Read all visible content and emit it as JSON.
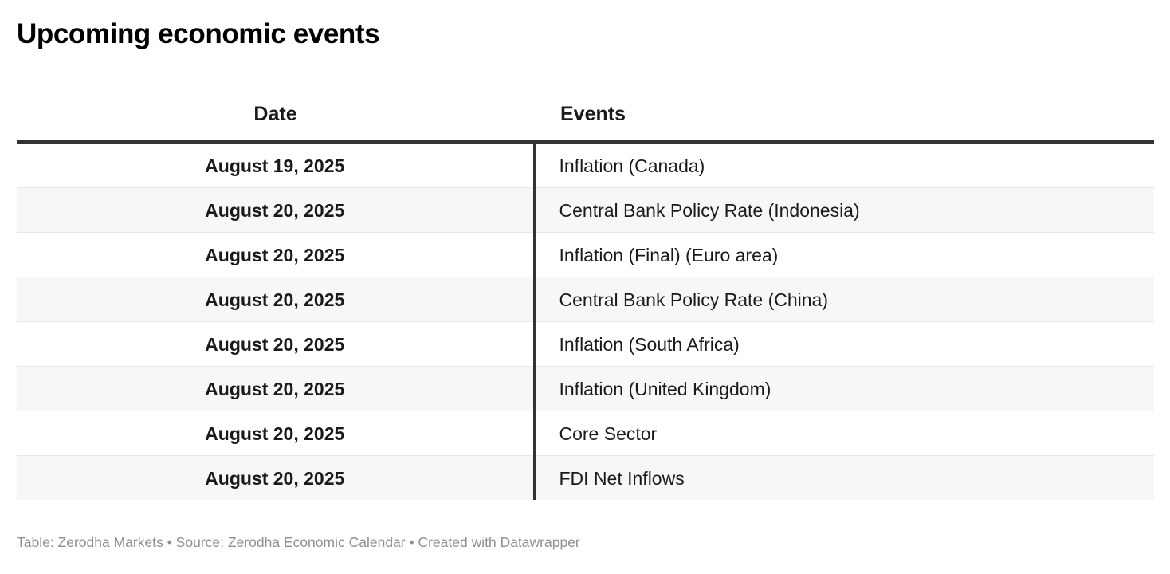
{
  "title": "Upcoming economic events",
  "chart_data": {
    "type": "table",
    "title": "Upcoming economic events",
    "columns": [
      "Date",
      "Events"
    ],
    "rows": [
      {
        "date": "August 19, 2025",
        "event": "Inflation (Canada)"
      },
      {
        "date": "August 20, 2025",
        "event": "Central Bank Policy Rate (Indonesia)"
      },
      {
        "date": "August 20, 2025",
        "event": "Inflation (Final) (Euro area)"
      },
      {
        "date": "August 20, 2025",
        "event": "Central Bank Policy Rate (China)"
      },
      {
        "date": "August 20, 2025",
        "event": "Inflation (South Africa)"
      },
      {
        "date": "August 20, 2025",
        "event": "Inflation (United Kingdom)"
      },
      {
        "date": "August 20, 2025",
        "event": "Core Sector"
      },
      {
        "date": "August 20, 2025",
        "event": "FDI Net Inflows"
      }
    ],
    "layout_hints": {
      "date_column_align": "center",
      "events_column_align": "left",
      "zebra_striping": true
    }
  },
  "footer": {
    "credits": "Table: Zerodha Markets • Source: Zerodha Economic Calendar • Created with Datawrapper"
  },
  "colors": {
    "title_text": "#000000",
    "body_text": "#1a1a1a",
    "header_rule": "#333333",
    "column_divider": "#333333",
    "row_stripe": "#f7f7f7",
    "row_separator": "#e8e8e8",
    "footer_text": "#8f8f8f",
    "background": "#ffffff"
  }
}
